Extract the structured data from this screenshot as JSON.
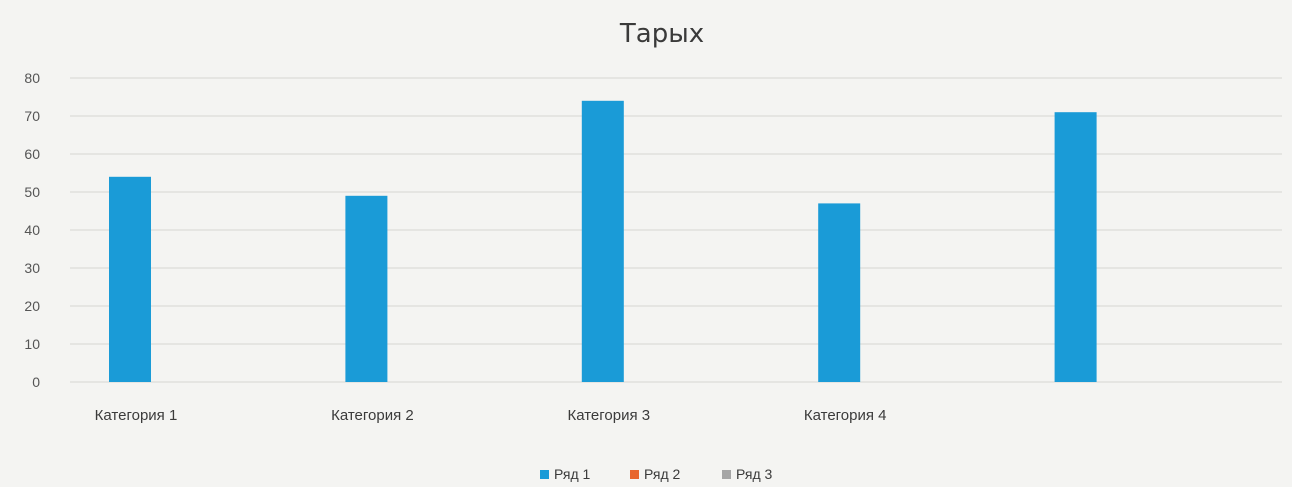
{
  "chart_data": {
    "type": "bar",
    "title": "Тарых",
    "categories": [
      "Категория 1",
      "Категория 2",
      "Категория 3",
      "Категория 4",
      ""
    ],
    "series": [
      {
        "name": "Ряд 1",
        "color": "#1a9bd7",
        "values": [
          54,
          49,
          74,
          47,
          71
        ]
      },
      {
        "name": "Ряд 2",
        "color": "#e8662d",
        "values": [
          0,
          0,
          0,
          0,
          0
        ]
      },
      {
        "name": "Ряд 3",
        "color": "#a5a5a5",
        "values": [
          0,
          0,
          0,
          0,
          0
        ]
      }
    ],
    "y_ticks": [
      "0",
      "10",
      "20",
      "30",
      "40",
      "50",
      "60",
      "70",
      "80"
    ],
    "ylim": [
      0,
      80
    ],
    "xlabel": "",
    "ylabel": "",
    "grid": true,
    "legend_position": "bottom"
  }
}
